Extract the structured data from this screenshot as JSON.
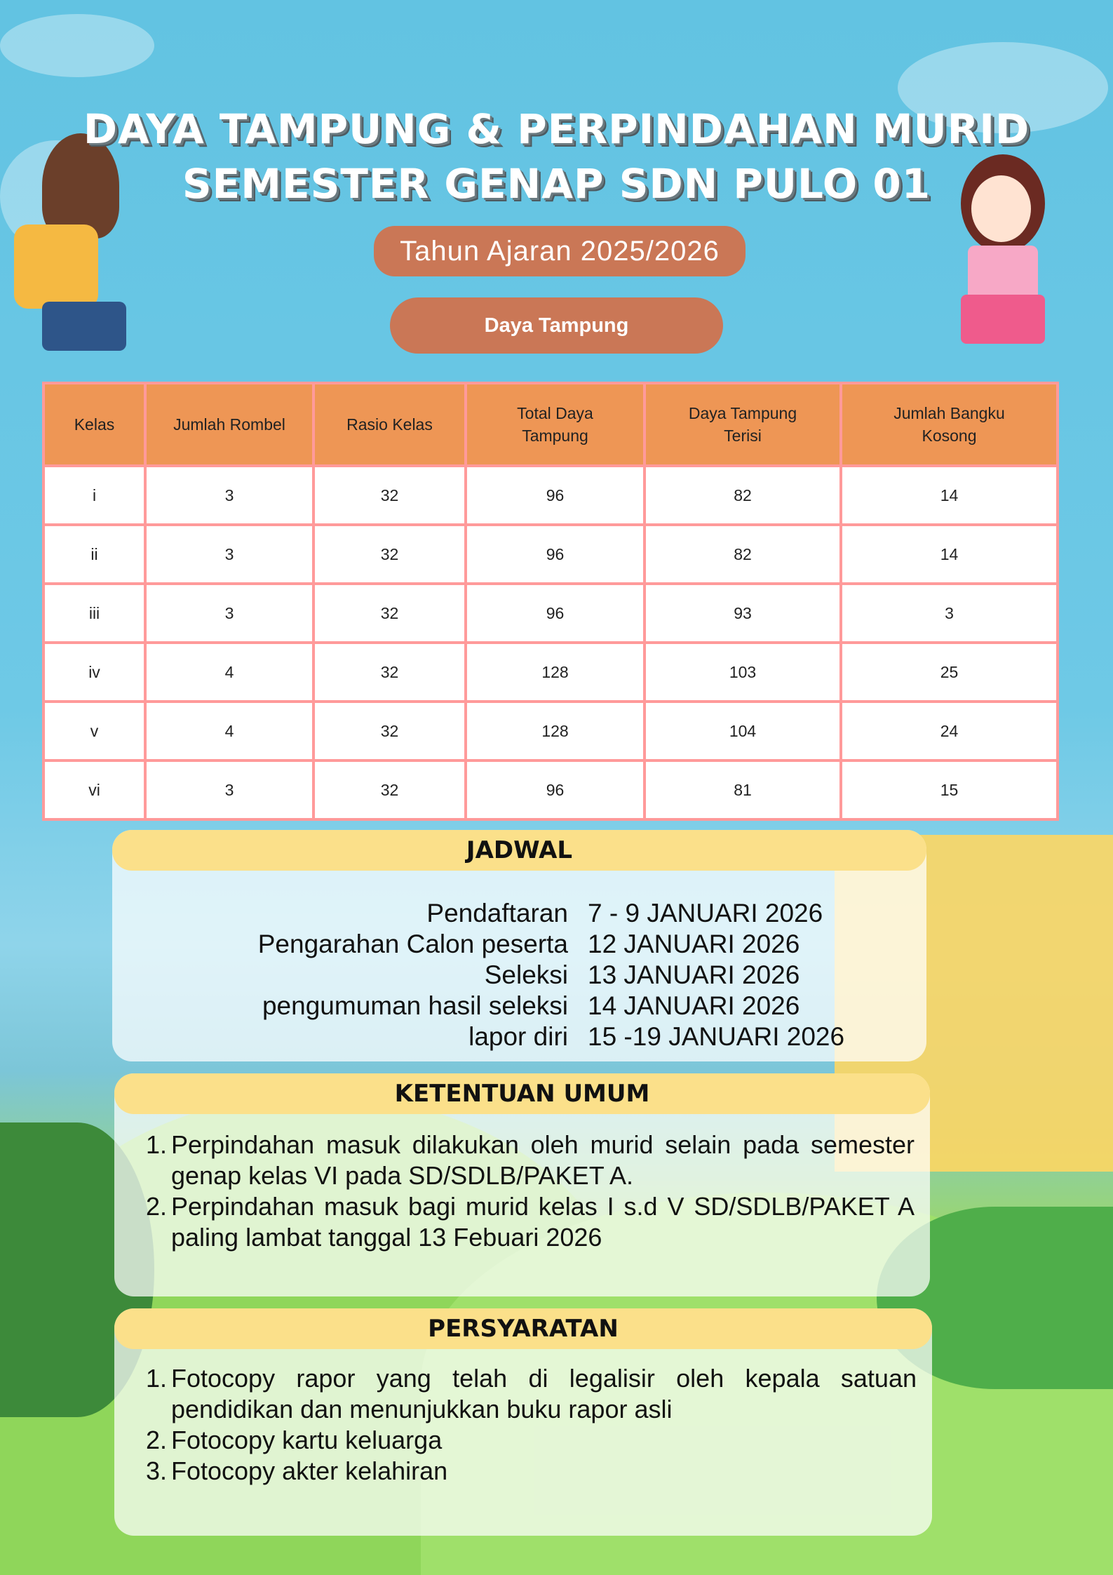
{
  "title": {
    "line1": "DAYA TAMPUNG & PERPINDAHAN MURID",
    "line2": "SEMESTER GENAP SDN PULO 01"
  },
  "academic_year": "Tahun Ajaran 2025/2026",
  "section_button": "Daya Tampung",
  "colors": {
    "header": "#ee9655",
    "border": "#ff9a9a",
    "pill": "#ca7756",
    "band": "#fbe08a"
  },
  "table": {
    "headers": [
      "Kelas",
      "Jumlah Rombel",
      "Rasio Kelas",
      "Total Daya Tampung",
      "Daya Tampung Terisi",
      "Jumlah Bangku Kosong"
    ],
    "rows": [
      [
        "i",
        "3",
        "32",
        "96",
        "82",
        "14"
      ],
      [
        "ii",
        "3",
        "32",
        "96",
        "82",
        "14"
      ],
      [
        "iii",
        "3",
        "32",
        "96",
        "93",
        "3"
      ],
      [
        "iv",
        "4",
        "32",
        "128",
        "103",
        "25"
      ],
      [
        "v",
        "4",
        "32",
        "128",
        "104",
        "24"
      ],
      [
        "vi",
        "3",
        "32",
        "96",
        "81",
        "15"
      ]
    ]
  },
  "jadwal": {
    "title": "JADWAL",
    "items": [
      {
        "label": "Pendaftaran",
        "value": "7 - 9 JANUARI 2026"
      },
      {
        "label": "Pengarahan Calon peserta",
        "value": "12 JANUARI 2026"
      },
      {
        "label": "Seleksi",
        "value": "13 JANUARI 2026"
      },
      {
        "label": "pengumuman hasil seleksi",
        "value": "14 JANUARI 2026"
      },
      {
        "label": "lapor diri",
        "value": "15 -19 JANUARI 2026"
      }
    ]
  },
  "ketentuan": {
    "title": "KETENTUAN UMUM",
    "items": [
      {
        "n": "1.",
        "text": "Perpindahan masuk dilakukan oleh murid selain pada semester genap kelas VI pada SD/SDLB/PAKET A."
      },
      {
        "n": "2.",
        "text": "Perpindahan masuk bagi murid kelas I s.d V SD/SDLB/PAKET A paling lambat tanggal 13 Febuari 2026"
      }
    ]
  },
  "persyaratan": {
    "title": "PERSYARATAN",
    "items": [
      {
        "n": "1.",
        "text": "Fotocopy rapor yang telah di legalisir oleh kepala satuan pendidikan dan menunjukkan buku rapor asli"
      },
      {
        "n": "2.",
        "text": "Fotocopy kartu keluarga"
      },
      {
        "n": "3.",
        "text": "Fotocopy akter kelahiran"
      }
    ]
  }
}
